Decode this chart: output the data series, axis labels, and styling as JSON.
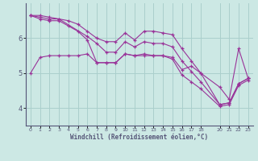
{
  "xlabel": "Windchill (Refroidissement éolien,°C)",
  "bg_color": "#cce8e4",
  "line_color": "#993399",
  "grid_color": "#aacfcc",
  "axis_color": "#555577",
  "spine_color": "#555577",
  "xlim": [
    -0.5,
    23.5
  ],
  "ylim": [
    3.5,
    7.0
  ],
  "yticks": [
    4,
    5,
    6
  ],
  "xticks": [
    0,
    1,
    2,
    3,
    4,
    5,
    6,
    7,
    8,
    9,
    10,
    11,
    12,
    13,
    14,
    15,
    16,
    17,
    18,
    20,
    21,
    22,
    23
  ],
  "lines": [
    {
      "x": [
        0,
        1,
        2,
        3,
        4,
        5,
        6,
        7,
        8,
        9,
        10,
        11,
        12,
        13,
        14,
        15,
        16,
        17,
        18,
        20,
        21,
        22,
        23
      ],
      "y": [
        6.65,
        6.65,
        6.6,
        6.55,
        6.5,
        6.4,
        6.2,
        6.0,
        5.9,
        5.9,
        6.15,
        5.95,
        6.2,
        6.2,
        6.15,
        6.1,
        5.7,
        5.35,
        5.0,
        4.1,
        4.15,
        4.7,
        4.85
      ]
    },
    {
      "x": [
        0,
        1,
        2,
        3,
        6,
        7,
        8,
        9,
        10,
        11,
        12,
        13,
        14,
        15,
        16,
        17,
        18,
        20,
        21,
        22,
        23
      ],
      "y": [
        6.65,
        6.6,
        6.55,
        6.55,
        6.05,
        5.85,
        5.6,
        5.6,
        5.9,
        5.75,
        5.9,
        5.85,
        5.85,
        5.75,
        5.35,
        5.05,
        4.75,
        4.1,
        4.15,
        4.7,
        4.85
      ]
    },
    {
      "x": [
        0,
        1,
        2,
        3,
        4,
        5,
        6,
        7,
        8,
        9,
        10,
        11,
        12,
        13,
        14,
        15,
        16,
        17,
        18,
        20,
        21,
        22,
        23
      ],
      "y": [
        6.65,
        6.55,
        6.5,
        6.5,
        6.35,
        6.2,
        5.95,
        5.3,
        5.3,
        5.3,
        5.55,
        5.5,
        5.55,
        5.5,
        5.5,
        5.4,
        4.95,
        4.75,
        4.55,
        4.05,
        4.1,
        4.65,
        4.8
      ]
    },
    {
      "x": [
        0,
        1,
        2,
        3,
        4,
        5,
        6,
        7,
        8,
        9,
        10,
        11,
        12,
        13,
        14,
        15,
        16,
        17,
        18,
        20,
        21,
        22,
        23
      ],
      "y": [
        5.0,
        5.45,
        5.5,
        5.5,
        5.5,
        5.5,
        5.55,
        5.3,
        5.3,
        5.3,
        5.55,
        5.5,
        5.5,
        5.5,
        5.5,
        5.45,
        5.1,
        5.2,
        5.0,
        4.6,
        4.25,
        5.7,
        4.85
      ]
    }
  ]
}
